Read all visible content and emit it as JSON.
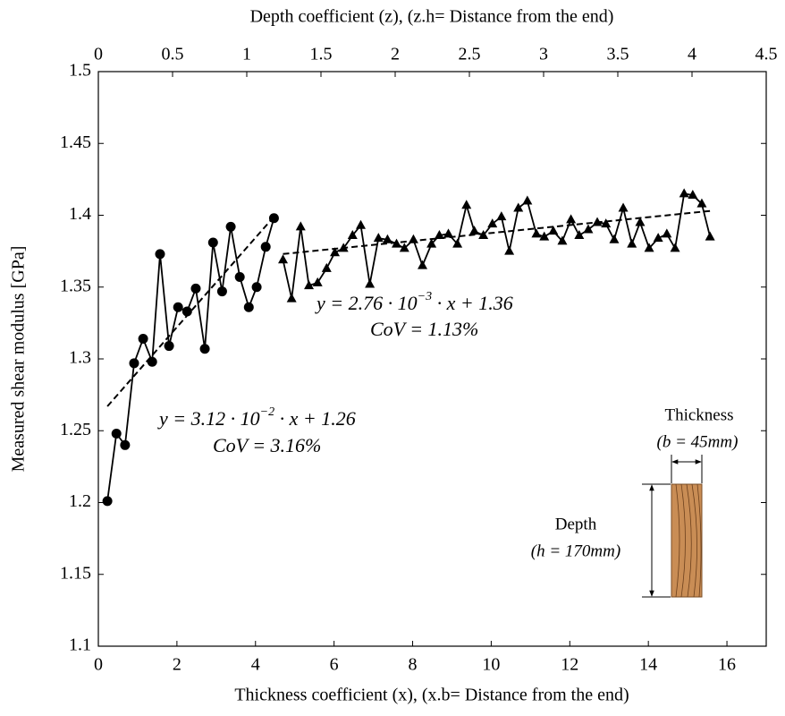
{
  "chart_data": {
    "type": "line",
    "xlabel": "Thickness coefficient (x), (x.b= Distance from the end)",
    "x2label": "Depth coefficient (z), (z.h= Distance from the end)",
    "ylabel": "Measured shear modulus [GPa]",
    "xlim": [
      0,
      17
    ],
    "xticks": [
      0,
      2,
      4,
      6,
      8,
      10,
      12,
      14,
      16
    ],
    "x2lim": [
      0,
      4.5
    ],
    "x2ticks": [
      0,
      0.5,
      1,
      1.5,
      2,
      2.5,
      3,
      3.5,
      4,
      4.5
    ],
    "ylim": [
      1.1,
      1.5
    ],
    "yticks": [
      1.1,
      1.15,
      1.2,
      1.25,
      1.3,
      1.35,
      1.4,
      1.45,
      1.5
    ],
    "grid": false,
    "series": [
      {
        "color": "#000000",
        "marker": "circle",
        "dash": false,
        "x": [
          0.23,
          0.46,
          0.68,
          0.91,
          1.14,
          1.37,
          1.57,
          1.8,
          2.03,
          2.26,
          2.48,
          2.71,
          2.92,
          3.15,
          3.37,
          3.6,
          3.83,
          4.03,
          4.26,
          4.47
        ],
        "values": [
          1.201,
          1.248,
          1.24,
          1.297,
          1.314,
          1.298,
          1.373,
          1.309,
          1.336,
          1.333,
          1.349,
          1.307,
          1.381,
          1.347,
          1.392,
          1.357,
          1.336,
          1.35,
          1.378,
          1.398
        ]
      },
      {
        "color": "#000000",
        "marker": "triangle",
        "dash": false,
        "x": [
          4.7,
          4.92,
          5.15,
          5.36,
          5.58,
          5.81,
          6.02,
          6.24,
          6.47,
          6.68,
          6.91,
          7.13,
          7.36,
          7.59,
          7.79,
          8.02,
          8.25,
          8.48,
          8.68,
          8.91,
          9.14,
          9.37,
          9.57,
          9.8,
          10.03,
          10.26,
          10.46,
          10.69,
          10.92,
          11.15,
          11.35,
          11.58,
          11.81,
          12.03,
          12.24,
          12.47,
          12.7,
          12.92,
          13.13,
          13.36,
          13.58,
          13.79,
          14.02,
          14.25,
          14.47,
          14.68,
          14.91,
          15.13,
          15.36,
          15.57
        ],
        "values": [
          1.369,
          1.342,
          1.392,
          1.351,
          1.353,
          1.363,
          1.374,
          1.377,
          1.386,
          1.393,
          1.352,
          1.384,
          1.383,
          1.38,
          1.377,
          1.383,
          1.365,
          1.38,
          1.386,
          1.387,
          1.38,
          1.407,
          1.389,
          1.386,
          1.394,
          1.399,
          1.375,
          1.405,
          1.41,
          1.387,
          1.385,
          1.389,
          1.382,
          1.397,
          1.386,
          1.39,
          1.395,
          1.394,
          1.383,
          1.405,
          1.38,
          1.395,
          1.377,
          1.384,
          1.387,
          1.377,
          1.415,
          1.414,
          1.408,
          1.385
        ]
      },
      {
        "color": "#000000",
        "marker": "none",
        "dash": true,
        "x": [
          0.23,
          4.47
        ],
        "values": [
          1.267,
          1.399
        ]
      },
      {
        "color": "#000000",
        "marker": "none",
        "dash": true,
        "x": [
          4.7,
          15.57
        ],
        "values": [
          1.373,
          1.403
        ]
      }
    ],
    "annotations": [
      {
        "parts": [
          "y = 3.12 · 10",
          "−2",
          " · x + 1.26"
        ],
        "cov": "CoV  =  3.16%"
      },
      {
        "parts": [
          "y = 2.76 · 10",
          "−3",
          " · x + 1.36"
        ],
        "cov": "CoV  =  1.13%"
      }
    ],
    "diagram": {
      "thickness": "Thickness",
      "thickness_value": "(b = 45mm)",
      "depth": "Depth",
      "depth_value": "(h = 170mm)"
    }
  }
}
